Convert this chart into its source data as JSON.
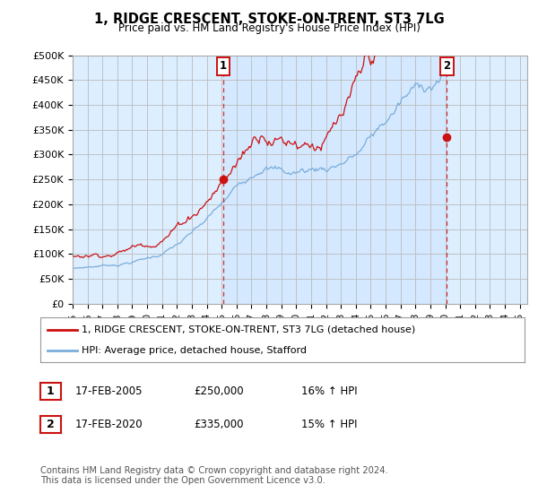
{
  "title": "1, RIDGE CRESCENT, STOKE-ON-TRENT, ST3 7LG",
  "subtitle": "Price paid vs. HM Land Registry's House Price Index (HPI)",
  "ylabel_ticks": [
    "£0",
    "£50K",
    "£100K",
    "£150K",
    "£200K",
    "£250K",
    "£300K",
    "£350K",
    "£400K",
    "£450K",
    "£500K"
  ],
  "ytick_values": [
    0,
    50000,
    100000,
    150000,
    200000,
    250000,
    300000,
    350000,
    400000,
    450000,
    500000
  ],
  "ylim": [
    0,
    500000
  ],
  "xlim_start": 1995.0,
  "xlim_end": 2025.5,
  "sale1_x": 2005.1,
  "sale1_y": 250000,
  "sale2_x": 2020.1,
  "sale2_y": 335000,
  "sale1_label": "1",
  "sale2_label": "2",
  "legend_line1": "1, RIDGE CRESCENT, STOKE-ON-TRENT, ST3 7LG (detached house)",
  "legend_line2": "HPI: Average price, detached house, Stafford",
  "table_row1": [
    "1",
    "17-FEB-2005",
    "£250,000",
    "16% ↑ HPI"
  ],
  "table_row2": [
    "2",
    "17-FEB-2020",
    "£335,000",
    "15% ↑ HPI"
  ],
  "footer": "Contains HM Land Registry data © Crown copyright and database right 2024.\nThis data is licensed under the Open Government Licence v3.0.",
  "hpi_color": "#7aaddb",
  "price_color": "#cc1111",
  "dashed_line_color": "#cc1111",
  "background_color": "#ffffff",
  "plot_bg_color": "#ddeeff",
  "grid_color": "#bbbbbb",
  "xtick_years": [
    1995,
    1996,
    1997,
    1998,
    1999,
    2000,
    2001,
    2002,
    2003,
    2004,
    2005,
    2006,
    2007,
    2008,
    2009,
    2010,
    2011,
    2012,
    2013,
    2014,
    2015,
    2016,
    2017,
    2018,
    2019,
    2020,
    2021,
    2022,
    2023,
    2024,
    2025
  ]
}
